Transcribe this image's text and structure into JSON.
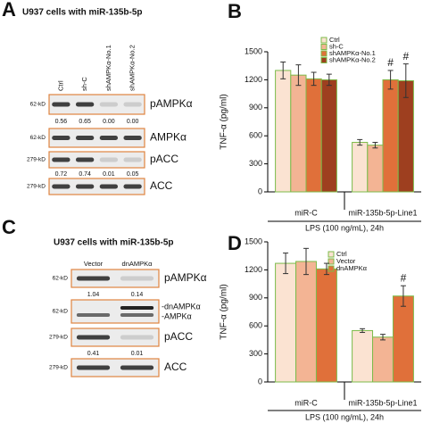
{
  "blots": [
    {
      "label": "A",
      "title": "U937 cells with miR-135b-5p",
      "lanes": [
        "Ctrl",
        "sh-C",
        "shAMPKα-No.1",
        "shAMPKα-No.2"
      ],
      "rows": [
        {
          "marker": "62-kD",
          "name": "pAMPKα",
          "quant": [
            "0.56",
            "0.65",
            "0.00",
            "0.00"
          ]
        },
        {
          "marker": "62-kD",
          "name": "AMPKα"
        },
        {
          "marker": "279-kD",
          "name": "pACC",
          "quant": [
            "0.72",
            "0.74",
            "0.01",
            "0.05"
          ]
        },
        {
          "marker": "279-kD",
          "name": "ACC"
        }
      ]
    },
    {
      "label": "C",
      "title": "U937 cells with miR-135b-5p",
      "lanes": [
        "Vector",
        "dnAMPKα"
      ],
      "rows": [
        {
          "marker": "62-kD",
          "name": "pAMPKα",
          "quant": [
            "1.04",
            "0.14"
          ]
        },
        {
          "marker": "62-kD",
          "names": [
            "-dnAMPKα",
            "-AMPKα"
          ]
        },
        {
          "marker": "279-kD",
          "name": "pACC",
          "quant": [
            "0.41",
            "0.01"
          ]
        },
        {
          "marker": "279-kD",
          "name": "ACC"
        }
      ]
    }
  ],
  "chart_data": [
    {
      "type": "bar",
      "label": "B",
      "ylabel": "TNF-α (pg/ml)",
      "xlabel": "LPS (100 ng/mL), 24h",
      "categories": [
        "miR-C",
        "miR-135b-5p-Line1"
      ],
      "edgecolor": "#7cbb4a",
      "ylim": [
        0,
        1500
      ],
      "yticks": [
        0,
        300,
        600,
        900,
        1200,
        1500
      ],
      "series": [
        {
          "name": "Ctrl",
          "color": "#fbe3d2",
          "values": [
            1300,
            530
          ],
          "errors": [
            90,
            30
          ]
        },
        {
          "name": "sh-C",
          "color": "#f3b494",
          "values": [
            1250,
            500
          ],
          "errors": [
            110,
            30
          ]
        },
        {
          "name": "shAMPKα-No.1",
          "color": "#e0703a",
          "values": [
            1210,
            1200
          ],
          "errors": [
            70,
            100
          ]
        },
        {
          "name": "shAMPKα-No.2",
          "color": "#9e3f1f",
          "values": [
            1200,
            1190
          ],
          "errors": [
            60,
            180
          ]
        }
      ],
      "annotations": [
        {
          "text": "#",
          "category": "miR-135b-5p-Line1",
          "series": "shAMPKα-No.1"
        },
        {
          "text": "#",
          "category": "miR-135b-5p-Line1",
          "series": "shAMPKα-No.2"
        }
      ]
    },
    {
      "type": "bar",
      "label": "D",
      "ylabel": "TNF-α (pg/ml)",
      "xlabel": "LPS (100 ng/mL), 24h",
      "categories": [
        "miR-C",
        "miR-135b-5p-Line1"
      ],
      "edgecolor": "#7cbb4a",
      "ylim": [
        0,
        1500
      ],
      "yticks": [
        0,
        300,
        600,
        900,
        1200,
        1500
      ],
      "series": [
        {
          "name": "Ctrl",
          "color": "#fbe3d2",
          "values": [
            1270,
            550
          ],
          "errors": [
            110,
            20
          ]
        },
        {
          "name": "Vector",
          "color": "#f3b494",
          "values": [
            1290,
            480
          ],
          "errors": [
            140,
            30
          ]
        },
        {
          "name": "dnAMPKα",
          "color": "#e0703a",
          "values": [
            1210,
            920
          ],
          "errors": [
            60,
            110
          ]
        }
      ],
      "annotations": [
        {
          "text": "#",
          "category": "miR-135b-5p-Line1",
          "series": "dnAMPKα"
        }
      ]
    }
  ]
}
